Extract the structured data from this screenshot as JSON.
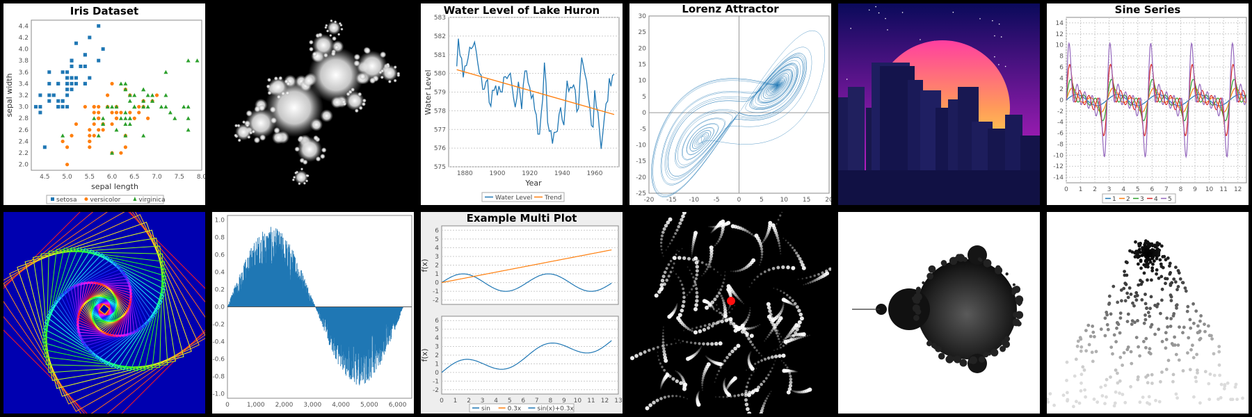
{
  "grid": {
    "rows": 2,
    "cols": 6
  },
  "colors": {
    "blue": "#1f77b4",
    "orange": "#ff7f0e",
    "green": "#2ca02c",
    "red": "#d62728",
    "purple": "#9467bd"
  },
  "chart_data": [
    {
      "id": "iris",
      "type": "scatter",
      "title": "Iris Dataset",
      "xlabel": "sepal length",
      "ylabel": "sepal width",
      "xlim": [
        4.2,
        8.0
      ],
      "ylim": [
        1.9,
        4.5
      ],
      "xticks": [
        "4.5",
        "5.0",
        "5.5",
        "6.0",
        "6.5",
        "7.0",
        "7.5",
        "8.0"
      ],
      "yticks": [
        "2.0",
        "2.2",
        "2.4",
        "2.6",
        "2.8",
        "3.0",
        "3.2",
        "3.4",
        "3.6",
        "3.8",
        "4.0",
        "4.2",
        "4.4"
      ],
      "series": [
        {
          "name": "setosa",
          "marker": "square",
          "color": "#1f77b4",
          "points": [
            [
              5.1,
              3.5
            ],
            [
              4.9,
              3.0
            ],
            [
              4.7,
              3.2
            ],
            [
              4.6,
              3.1
            ],
            [
              5.0,
              3.6
            ],
            [
              5.4,
              3.9
            ],
            [
              4.6,
              3.4
            ],
            [
              5.0,
              3.4
            ],
            [
              4.4,
              2.9
            ],
            [
              4.9,
              3.1
            ],
            [
              5.4,
              3.7
            ],
            [
              4.8,
              3.4
            ],
            [
              4.8,
              3.0
            ],
            [
              4.3,
              3.0
            ],
            [
              5.8,
              4.0
            ],
            [
              5.7,
              4.4
            ],
            [
              5.4,
              3.9
            ],
            [
              5.1,
              3.5
            ],
            [
              5.7,
              3.8
            ],
            [
              5.1,
              3.8
            ],
            [
              5.4,
              3.4
            ],
            [
              5.1,
              3.7
            ],
            [
              4.6,
              3.6
            ],
            [
              5.1,
              3.3
            ],
            [
              4.8,
              3.4
            ],
            [
              5.0,
              3.0
            ],
            [
              5.0,
              3.4
            ],
            [
              5.2,
              3.5
            ],
            [
              5.2,
              3.4
            ],
            [
              4.7,
              3.2
            ],
            [
              4.8,
              3.1
            ],
            [
              5.4,
              3.4
            ],
            [
              5.2,
              4.1
            ],
            [
              5.5,
              4.2
            ],
            [
              4.9,
              3.1
            ],
            [
              5.0,
              3.2
            ],
            [
              5.5,
              3.5
            ],
            [
              4.9,
              3.6
            ],
            [
              4.4,
              3.0
            ],
            [
              5.1,
              3.4
            ],
            [
              5.0,
              3.5
            ],
            [
              4.5,
              2.3
            ],
            [
              4.4,
              3.2
            ],
            [
              5.0,
              3.5
            ],
            [
              5.1,
              3.8
            ],
            [
              4.8,
              3.0
            ],
            [
              5.1,
              3.8
            ],
            [
              4.6,
              3.2
            ],
            [
              5.3,
              3.7
            ],
            [
              5.0,
              3.3
            ]
          ]
        },
        {
          "name": "versicolor",
          "marker": "circle",
          "color": "#ff7f0e",
          "points": [
            [
              7.0,
              3.2
            ],
            [
              6.4,
              3.2
            ],
            [
              6.9,
              3.1
            ],
            [
              5.5,
              2.3
            ],
            [
              6.5,
              2.8
            ],
            [
              5.7,
              2.8
            ],
            [
              6.3,
              3.3
            ],
            [
              4.9,
              2.4
            ],
            [
              6.6,
              2.9
            ],
            [
              5.2,
              2.7
            ],
            [
              5.0,
              2.0
            ],
            [
              5.9,
              3.0
            ],
            [
              6.0,
              2.2
            ],
            [
              6.1,
              2.9
            ],
            [
              5.6,
              2.9
            ],
            [
              6.7,
              3.1
            ],
            [
              5.6,
              3.0
            ],
            [
              5.8,
              2.7
            ],
            [
              6.2,
              2.2
            ],
            [
              5.6,
              2.5
            ],
            [
              5.9,
              3.2
            ],
            [
              6.1,
              2.8
            ],
            [
              6.3,
              2.5
            ],
            [
              6.1,
              2.8
            ],
            [
              6.4,
              2.9
            ],
            [
              6.6,
              3.0
            ],
            [
              6.8,
              2.8
            ],
            [
              6.7,
              3.0
            ],
            [
              6.0,
              2.9
            ],
            [
              5.7,
              2.6
            ],
            [
              5.5,
              2.4
            ],
            [
              5.5,
              2.4
            ],
            [
              5.8,
              2.7
            ],
            [
              6.0,
              2.7
            ],
            [
              5.4,
              3.0
            ],
            [
              6.0,
              3.4
            ],
            [
              6.7,
              3.1
            ],
            [
              6.3,
              2.3
            ],
            [
              5.6,
              3.0
            ],
            [
              5.5,
              2.5
            ],
            [
              5.5,
              2.6
            ],
            [
              6.1,
              3.0
            ],
            [
              5.8,
              2.6
            ],
            [
              5.0,
              2.3
            ],
            [
              5.6,
              2.7
            ],
            [
              5.7,
              3.0
            ],
            [
              5.7,
              2.9
            ],
            [
              6.2,
              2.9
            ],
            [
              5.1,
              2.5
            ],
            [
              5.7,
              2.8
            ]
          ]
        },
        {
          "name": "virginica",
          "marker": "triangle",
          "color": "#2ca02c",
          "points": [
            [
              6.3,
              3.3
            ],
            [
              5.8,
              2.7
            ],
            [
              7.1,
              3.0
            ],
            [
              6.3,
              2.9
            ],
            [
              6.5,
              3.0
            ],
            [
              7.6,
              3.0
            ],
            [
              4.9,
              2.5
            ],
            [
              7.3,
              2.9
            ],
            [
              6.7,
              2.5
            ],
            [
              7.2,
              3.6
            ],
            [
              6.5,
              3.2
            ],
            [
              6.4,
              2.7
            ],
            [
              6.8,
              3.0
            ],
            [
              5.7,
              2.5
            ],
            [
              5.8,
              2.8
            ],
            [
              6.4,
              3.2
            ],
            [
              6.5,
              3.0
            ],
            [
              7.7,
              3.8
            ],
            [
              7.7,
              2.6
            ],
            [
              6.0,
              2.2
            ],
            [
              6.9,
              3.2
            ],
            [
              5.6,
              2.8
            ],
            [
              7.7,
              2.8
            ],
            [
              6.3,
              2.7
            ],
            [
              6.7,
              3.3
            ],
            [
              7.2,
              3.2
            ],
            [
              6.2,
              2.8
            ],
            [
              6.1,
              3.0
            ],
            [
              6.4,
              2.8
            ],
            [
              7.2,
              3.0
            ],
            [
              7.4,
              2.8
            ],
            [
              7.9,
              3.8
            ],
            [
              6.4,
              2.8
            ],
            [
              6.3,
              2.8
            ],
            [
              6.1,
              2.6
            ],
            [
              7.7,
              3.0
            ],
            [
              6.3,
              3.4
            ],
            [
              6.4,
              3.1
            ],
            [
              6.0,
              3.0
            ],
            [
              6.9,
              3.1
            ],
            [
              6.7,
              3.1
            ],
            [
              6.9,
              3.1
            ],
            [
              5.8,
              2.7
            ],
            [
              6.8,
              3.2
            ],
            [
              6.7,
              3.3
            ],
            [
              6.7,
              3.0
            ],
            [
              6.3,
              2.5
            ],
            [
              6.5,
              3.0
            ],
            [
              6.2,
              3.4
            ],
            [
              5.9,
              3.0
            ]
          ]
        }
      ]
    },
    {
      "id": "julia",
      "type": "image",
      "title": ""
    },
    {
      "id": "huron",
      "type": "line",
      "title": "Water Level of Lake Huron",
      "xlabel": "Year",
      "ylabel": "Water Level",
      "xlim": [
        1870,
        1975
      ],
      "ylim": [
        575,
        583
      ],
      "xticks": [
        "1880",
        "1900",
        "1920",
        "1940",
        "1960"
      ],
      "yticks": [
        "575",
        "576",
        "577",
        "578",
        "579",
        "580",
        "581",
        "582",
        "583"
      ],
      "x_start": 1875,
      "series": [
        {
          "name": "Water Level",
          "color": "#1f77b4",
          "values": [
            580.38,
            581.86,
            580.97,
            580.8,
            579.79,
            580.39,
            580.42,
            580.82,
            581.4,
            581.32,
            581.44,
            581.68,
            581.17,
            580.53,
            580.01,
            579.91,
            579.14,
            579.16,
            579.55,
            579.67,
            578.44,
            578.24,
            579.1,
            579.09,
            579.35,
            578.82,
            579.32,
            579.01,
            579.0,
            579.8,
            579.83,
            579.72,
            579.89,
            580.01,
            579.37,
            578.69,
            578.19,
            578.67,
            579.55,
            578.92,
            578.09,
            579.37,
            580.13,
            580.14,
            579.51,
            579.24,
            578.66,
            578.86,
            578.05,
            577.79,
            576.75,
            576.75,
            577.82,
            578.64,
            580.58,
            579.48,
            577.38,
            576.9,
            576.94,
            576.24,
            576.84,
            576.85,
            576.9,
            577.79,
            578.18,
            577.51,
            577.23,
            578.42,
            579.61,
            579.05,
            579.26,
            579.22,
            579.38,
            579.1,
            577.95,
            578.12,
            579.75,
            580.85,
            580.41,
            579.96,
            579.61,
            578.76,
            578.18,
            577.21,
            577.13,
            579.1,
            578.25,
            577.91,
            576.89,
            575.96,
            576.8,
            577.68,
            578.38,
            578.52,
            579.74,
            579.31,
            579.89,
            579.96
          ]
        },
        {
          "name": "Trend",
          "color": "#ff7f0e",
          "endpoints": [
            [
              1875,
              580.2
            ],
            [
              1972,
              577.8
            ]
          ]
        }
      ]
    },
    {
      "id": "lorenz",
      "type": "line",
      "title": "Lorenz Attractor",
      "xlim": [
        -20,
        20
      ],
      "ylim": [
        -25,
        30
      ],
      "xticks": [
        "-20",
        "-15",
        "-10",
        "-5",
        "0",
        "5",
        "10",
        "15",
        "20"
      ],
      "yticks": [
        "-25",
        "-20",
        "-15",
        "-10",
        "-5",
        "0",
        "5",
        "10",
        "15",
        "20",
        "25",
        "30"
      ],
      "params": {
        "sigma": 10,
        "rho": 28,
        "beta": 2.6667
      }
    },
    {
      "id": "synthwave",
      "type": "image",
      "title": ""
    },
    {
      "id": "sine",
      "type": "line",
      "title": "Sine Series",
      "xlim": [
        0,
        12.6
      ],
      "ylim": [
        -15,
        15
      ],
      "xticks": [
        "0",
        "1",
        "2",
        "3",
        "4",
        "5",
        "6",
        "7",
        "8",
        "9",
        "10",
        "11",
        "12"
      ],
      "yticks": [
        "-14",
        "-12",
        "-10",
        "-8",
        "-6",
        "-4",
        "-2",
        "0",
        "2",
        "4",
        "6",
        "8",
        "10",
        "12",
        "14"
      ],
      "legend": [
        "1",
        "2",
        "3",
        "4",
        "5"
      ],
      "colors": [
        "#1f77b4",
        "#ff7f0e",
        "#2ca02c",
        "#d62728",
        "#9467bd"
      ]
    },
    {
      "id": "spiral",
      "type": "image",
      "title": ""
    },
    {
      "id": "bars",
      "type": "bar",
      "title": "",
      "xlim": [
        0,
        6500
      ],
      "ylim": [
        -1.05,
        1.05
      ],
      "xticks": [
        "0",
        "1,000",
        "2,000",
        "3,000",
        "4,000",
        "5,000",
        "6,000"
      ],
      "yticks": [
        "-1.0",
        "-0.8",
        "-0.6",
        "-0.4",
        "-0.2",
        "0.0",
        "0.2",
        "0.4",
        "0.6",
        "0.8",
        "1.0"
      ]
    },
    {
      "id": "multi",
      "type": "line",
      "title": "Example Multi Plot",
      "ylabel": "f(x)",
      "top": {
        "ylim": [
          -2.5,
          6.5
        ],
        "yticks": [
          "-2",
          "-1",
          "0",
          "1",
          "2",
          "3",
          "4",
          "5",
          "6"
        ]
      },
      "bottom": {
        "ylim": [
          -2.5,
          6.5
        ],
        "yticks": [
          "-2",
          "-1",
          "0",
          "1",
          "2",
          "3",
          "4",
          "5",
          "6"
        ]
      },
      "xlim": [
        0,
        13
      ],
      "xticks": [
        "0",
        "1",
        "2",
        "3",
        "4",
        "5",
        "6",
        "7",
        "8",
        "9",
        "10",
        "11",
        "12",
        "13"
      ],
      "legend": [
        "sin",
        "0.3x",
        "sin(x)+0.3x"
      ]
    },
    {
      "id": "particles",
      "type": "image",
      "title": ""
    },
    {
      "id": "mandelbrot",
      "type": "image",
      "title": ""
    },
    {
      "id": "scatter-gray",
      "type": "scatter",
      "title": ""
    }
  ]
}
